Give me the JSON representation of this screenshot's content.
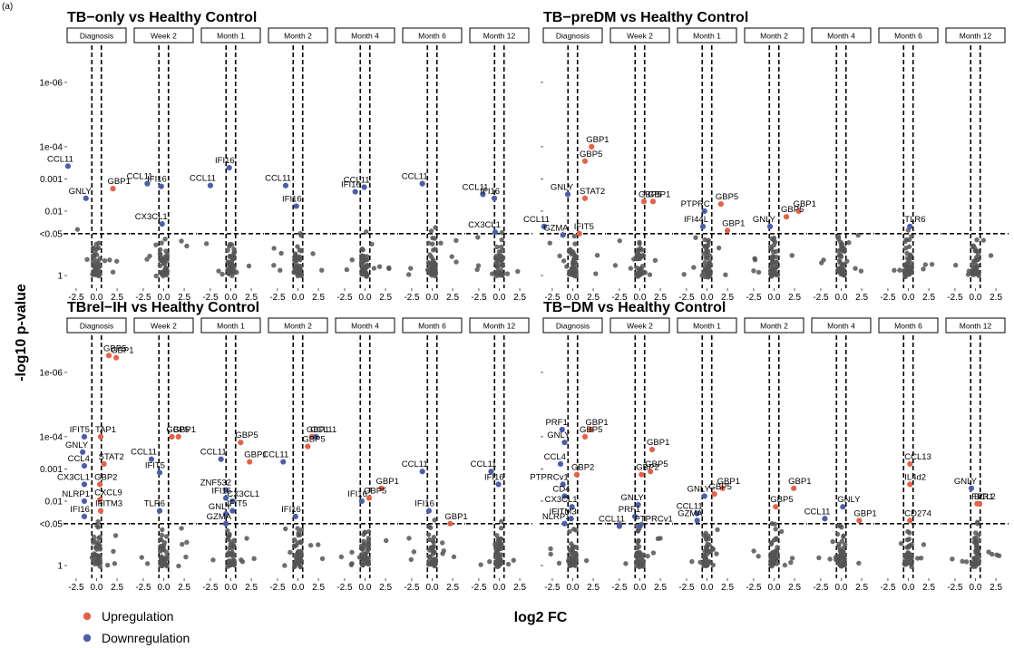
{
  "corner_label": "(a)",
  "chart_data": {
    "type": "scatter",
    "subtype": "faceted volcano plot",
    "xlabel": "log2 FC",
    "ylabel": "-log10 p-value",
    "x_ticks": [
      -2.5,
      0.0,
      2.5
    ],
    "x_tick_labels": [
      "-2.5",
      "0.0",
      "2.5"
    ],
    "xlim": [
      -3.6,
      3.6
    ],
    "y_scale": "log p-value (reversed)",
    "y_ticks": [
      1e-06,
      0.0001,
      0.001,
      0.01,
      0.05,
      1
    ],
    "y_tick_labels": [
      "1e-06",
      "1e-04",
      "0.001",
      "0.01",
      "<0.05",
      "1"
    ],
    "reference_lines": {
      "x": [
        -0.58,
        0.58
      ],
      "y": 0.05,
      "style": "dashed"
    },
    "colors": {
      "Upregulation": "#e0634a",
      "Downregulation": "#4b5ea6",
      "background": "#555555"
    },
    "legend": {
      "placement": "bottom-left",
      "entries": [
        "Upregulation",
        "Downregulation"
      ]
    },
    "timepoints": [
      "Diagnosis",
      "Week 2",
      "Month 1",
      "Month 2",
      "Month 4",
      "Month 6",
      "Month 12"
    ],
    "panels": [
      {
        "title": "TB−only vs Healthy Control",
        "points": [
          {
            "facet": 0,
            "gene": "CCL11",
            "x": -3.5,
            "p": 0.0004,
            "dir": "down"
          },
          {
            "facet": 0,
            "gene": "GNLY",
            "x": -1.3,
            "p": 0.004,
            "dir": "down"
          },
          {
            "facet": 0,
            "gene": "GBP1",
            "x": 2.0,
            "p": 0.002,
            "dir": "up"
          },
          {
            "facet": 1,
            "gene": "CCL11",
            "x": -2.0,
            "p": 0.0014,
            "dir": "down"
          },
          {
            "facet": 1,
            "gene": "IFI16",
            "x": -0.3,
            "p": 0.0017,
            "dir": "down"
          },
          {
            "facet": 1,
            "gene": "CX3CL1",
            "x": -0.2,
            "p": 0.025,
            "dir": "down"
          },
          {
            "facet": 2,
            "gene": "CCL11",
            "x": -2.5,
            "p": 0.0016,
            "dir": "down"
          },
          {
            "facet": 2,
            "gene": "IFI16",
            "x": -0.2,
            "p": 0.00045,
            "dir": "down"
          },
          {
            "facet": 3,
            "gene": "CCL11",
            "x": -1.5,
            "p": 0.0016,
            "dir": "down"
          },
          {
            "facet": 3,
            "gene": "IFI16",
            "x": -0.2,
            "p": 0.007,
            "dir": "down"
          },
          {
            "facet": 4,
            "gene": "IFI16",
            "x": -1.2,
            "p": 0.0025,
            "dir": "down"
          },
          {
            "facet": 4,
            "gene": "CCL11",
            "x": -0.1,
            "p": 0.0018,
            "dir": "down"
          },
          {
            "facet": 5,
            "gene": "CCL11",
            "x": -1.2,
            "p": 0.0014,
            "dir": "down"
          },
          {
            "facet": 6,
            "gene": "CCL11",
            "x": -2.0,
            "p": 0.003,
            "dir": "down"
          },
          {
            "facet": 6,
            "gene": "IFI16",
            "x": -0.6,
            "p": 0.004,
            "dir": "down"
          },
          {
            "facet": 6,
            "gene": "CX3CL1",
            "x": -0.5,
            "p": 0.045,
            "dir": "down"
          }
        ]
      },
      {
        "title": "TB−preDM vs Healthy Control",
        "points": [
          {
            "facet": 0,
            "gene": "GBP1",
            "x": 2.3,
            "p": 0.0001,
            "dir": "up"
          },
          {
            "facet": 0,
            "gene": "GBP5",
            "x": 1.5,
            "p": 0.00028,
            "dir": "up"
          },
          {
            "facet": 0,
            "gene": "STAT2",
            "x": 1.5,
            "p": 0.004,
            "dir": "up"
          },
          {
            "facet": 0,
            "gene": "GNLY",
            "x": -0.6,
            "p": 0.003,
            "dir": "down"
          },
          {
            "facet": 0,
            "gene": "CCL11",
            "x": -3.5,
            "p": 0.03,
            "dir": "down"
          },
          {
            "facet": 0,
            "gene": "GZMA",
            "x": -1.2,
            "p": 0.055,
            "dir": "down"
          },
          {
            "facet": 0,
            "gene": "IFIT5",
            "x": 0.8,
            "p": 0.05,
            "dir": "up"
          },
          {
            "facet": 1,
            "gene": "GBP1",
            "x": 1.6,
            "p": 0.005,
            "dir": "up"
          },
          {
            "facet": 1,
            "gene": "GBP5",
            "x": 0.5,
            "p": 0.005,
            "dir": "up"
          },
          {
            "facet": 2,
            "gene": "PTPRC",
            "x": -0.3,
            "p": 0.01,
            "dir": "down"
          },
          {
            "facet": 2,
            "gene": "IFI44L",
            "x": -0.5,
            "p": 0.03,
            "dir": "down"
          },
          {
            "facet": 2,
            "gene": "GBP5",
            "x": 1.7,
            "p": 0.006,
            "dir": "up"
          },
          {
            "facet": 2,
            "gene": "GBP1",
            "x": 2.5,
            "p": 0.04,
            "dir": "up"
          },
          {
            "facet": 3,
            "gene": "GBP1",
            "x": 3.0,
            "p": 0.01,
            "dir": "up"
          },
          {
            "facet": 3,
            "gene": "GBP5",
            "x": 1.5,
            "p": 0.015,
            "dir": "up"
          },
          {
            "facet": 3,
            "gene": "GNLY",
            "x": -0.5,
            "p": 0.03,
            "dir": "down"
          },
          {
            "facet": 5,
            "gene": "TLR6",
            "x": 0.2,
            "p": 0.03,
            "dir": "down"
          }
        ]
      },
      {
        "title": "TBrel−IH vs Healthy Control",
        "points": [
          {
            "facet": 0,
            "gene": "GBP5",
            "x": 1.5,
            "p": 3e-07,
            "dir": "up"
          },
          {
            "facet": 0,
            "gene": "GBP1",
            "x": 2.4,
            "p": 3.5e-07,
            "dir": "up"
          },
          {
            "facet": 0,
            "gene": "IFIT5",
            "x": -1.5,
            "p": 0.0001,
            "dir": "down"
          },
          {
            "facet": 0,
            "gene": "TAP1",
            "x": 0.5,
            "p": 0.0001,
            "dir": "up"
          },
          {
            "facet": 0,
            "gene": "STAT2",
            "x": 0.9,
            "p": 0.0007,
            "dir": "up"
          },
          {
            "facet": 0,
            "gene": "GNLY",
            "x": -1.7,
            "p": 0.0003,
            "dir": "down"
          },
          {
            "facet": 0,
            "gene": "CCL4",
            "x": -1.5,
            "p": 0.0008,
            "dir": "down"
          },
          {
            "facet": 0,
            "gene": "GBP2",
            "x": 0.4,
            "p": 0.003,
            "dir": "up"
          },
          {
            "facet": 0,
            "gene": "CX3CL1",
            "x": -1.5,
            "p": 0.003,
            "dir": "down"
          },
          {
            "facet": 0,
            "gene": "NLRP1",
            "x": -1.5,
            "p": 0.01,
            "dir": "down"
          },
          {
            "facet": 0,
            "gene": "CXCL9",
            "x": 0.4,
            "p": 0.009,
            "dir": "up"
          },
          {
            "facet": 0,
            "gene": "IFITM3",
            "x": 0.5,
            "p": 0.02,
            "dir": "up"
          },
          {
            "facet": 0,
            "gene": "IFI16",
            "x": -1.5,
            "p": 0.03,
            "dir": "down"
          },
          {
            "facet": 1,
            "gene": "GBP1",
            "x": 1.8,
            "p": 0.0001,
            "dir": "up"
          },
          {
            "facet": 1,
            "gene": "GBP5",
            "x": 1.0,
            "p": 0.0001,
            "dir": "up"
          },
          {
            "facet": 1,
            "gene": "CCL11",
            "x": -1.5,
            "p": 0.0005,
            "dir": "down"
          },
          {
            "facet": 1,
            "gene": "IFIT5",
            "x": -0.5,
            "p": 0.0013,
            "dir": "down"
          },
          {
            "facet": 1,
            "gene": "TLR6",
            "x": -0.5,
            "p": 0.02,
            "dir": "down"
          },
          {
            "facet": 2,
            "gene": "GBP5",
            "x": 1.2,
            "p": 0.00015,
            "dir": "up"
          },
          {
            "facet": 2,
            "gene": "GBP1",
            "x": 2.3,
            "p": 0.0006,
            "dir": "up"
          },
          {
            "facet": 2,
            "gene": "CCL11",
            "x": -1.2,
            "p": 0.0005,
            "dir": "down"
          },
          {
            "facet": 2,
            "gene": "ZNF532",
            "x": -0.6,
            "p": 0.0045,
            "dir": "down"
          },
          {
            "facet": 2,
            "gene": "IFI16",
            "x": -0.6,
            "p": 0.008,
            "dir": "down"
          },
          {
            "facet": 2,
            "gene": "CX3CL1",
            "x": 0.2,
            "p": 0.01,
            "dir": "down"
          },
          {
            "facet": 2,
            "gene": "IFIT5",
            "x": 0.2,
            "p": 0.02,
            "dir": "down"
          },
          {
            "facet": 2,
            "gene": "GNLY",
            "x": -0.6,
            "p": 0.025,
            "dir": "down"
          },
          {
            "facet": 2,
            "gene": "GZMA",
            "x": -0.6,
            "p": 0.05,
            "dir": "down"
          },
          {
            "facet": 3,
            "gene": "GBP1",
            "x": 1.7,
            "p": 0.0001,
            "dir": "up"
          },
          {
            "facet": 3,
            "gene": "CCL11",
            "x": 2.2,
            "p": 0.0001,
            "dir": "down"
          },
          {
            "facet": 3,
            "gene": "GBP5",
            "x": 1.2,
            "p": 0.0002,
            "dir": "up"
          },
          {
            "facet": 3,
            "gene": "CCL11",
            "x": -1.8,
            "p": 0.0006,
            "dir": "down"
          },
          {
            "facet": 3,
            "gene": "IFI16",
            "x": -0.3,
            "p": 0.03,
            "dir": "down"
          },
          {
            "facet": 4,
            "gene": "GBP1",
            "x": 2.0,
            "p": 0.004,
            "dir": "up"
          },
          {
            "facet": 4,
            "gene": "GBP5",
            "x": 0.5,
            "p": 0.008,
            "dir": "up"
          },
          {
            "facet": 4,
            "gene": "IFI16",
            "x": -0.4,
            "p": 0.01,
            "dir": "down"
          },
          {
            "facet": 5,
            "gene": "CCL11",
            "x": -1.2,
            "p": 0.0012,
            "dir": "down"
          },
          {
            "facet": 5,
            "gene": "IFI16",
            "x": -0.4,
            "p": 0.02,
            "dir": "down"
          },
          {
            "facet": 5,
            "gene": "GBP1",
            "x": 2.2,
            "p": 0.05,
            "dir": "up"
          },
          {
            "facet": 6,
            "gene": "CCL11",
            "x": -1.0,
            "p": 0.0012,
            "dir": "down"
          },
          {
            "facet": 6,
            "gene": "IFI16",
            "x": -0.1,
            "p": 0.003,
            "dir": "down"
          }
        ]
      },
      {
        "title": "TB−DM vs Healthy Control",
        "points": [
          {
            "facet": 0,
            "gene": "PRF1",
            "x": -1.3,
            "p": 6e-05,
            "dir": "down"
          },
          {
            "facet": 0,
            "gene": "GBP1",
            "x": 2.2,
            "p": 6e-05,
            "dir": "up"
          },
          {
            "facet": 0,
            "gene": "GNLY",
            "x": -1.0,
            "p": 0.00015,
            "dir": "down"
          },
          {
            "facet": 0,
            "gene": "GBP5",
            "x": 1.5,
            "p": 0.0001,
            "dir": "up"
          },
          {
            "facet": 0,
            "gene": "CCL4",
            "x": -1.5,
            "p": 0.0007,
            "dir": "down"
          },
          {
            "facet": 0,
            "gene": "GBP2",
            "x": 0.5,
            "p": 0.0015,
            "dir": "up"
          },
          {
            "facet": 0,
            "gene": "PTPRCv1",
            "x": -1.2,
            "p": 0.003,
            "dir": "down"
          },
          {
            "facet": 0,
            "gene": "CD4",
            "x": -1.0,
            "p": 0.007,
            "dir": "down"
          },
          {
            "facet": 0,
            "gene": "CX3CL1",
            "x": -0.1,
            "p": 0.015,
            "dir": "down"
          },
          {
            "facet": 0,
            "gene": "NLRP1",
            "x": -1.0,
            "p": 0.05,
            "dir": "down"
          },
          {
            "facet": 0,
            "gene": "IFITM3",
            "x": -0.2,
            "p": 0.035,
            "dir": "down"
          },
          {
            "facet": 1,
            "gene": "GBP1",
            "x": 1.5,
            "p": 0.00025,
            "dir": "up"
          },
          {
            "facet": 1,
            "gene": "GBP5",
            "x": 1.3,
            "p": 0.0012,
            "dir": "up"
          },
          {
            "facet": 1,
            "gene": "GBP2",
            "x": 0.2,
            "p": 0.0015,
            "dir": "up"
          },
          {
            "facet": 1,
            "gene": "GNLY",
            "x": -0.2,
            "p": 0.013,
            "dir": "down"
          },
          {
            "facet": 1,
            "gene": "PRF1",
            "x": -0.6,
            "p": 0.03,
            "dir": "down"
          },
          {
            "facet": 1,
            "gene": "CCL11",
            "x": -2.5,
            "p": 0.06,
            "dir": "down"
          },
          {
            "facet": 1,
            "gene": "PTPRCv1",
            "x": 0.0,
            "p": 0.06,
            "dir": "down"
          },
          {
            "facet": 2,
            "gene": "GBP1",
            "x": 1.9,
            "p": 0.004,
            "dir": "up"
          },
          {
            "facet": 2,
            "gene": "GBP5",
            "x": 0.9,
            "p": 0.006,
            "dir": "up"
          },
          {
            "facet": 2,
            "gene": "GNLY",
            "x": -0.3,
            "p": 0.007,
            "dir": "down"
          },
          {
            "facet": 2,
            "gene": "CCL11",
            "x": -1.2,
            "p": 0.024,
            "dir": "down"
          },
          {
            "facet": 2,
            "gene": "GZMA",
            "x": -1.2,
            "p": 0.04,
            "dir": "down"
          },
          {
            "facet": 3,
            "gene": "GBP1",
            "x": 2.4,
            "p": 0.004,
            "dir": "up"
          },
          {
            "facet": 3,
            "gene": "GBP5",
            "x": 0.2,
            "p": 0.015,
            "dir": "up"
          },
          {
            "facet": 4,
            "gene": "GNLY",
            "x": 0.2,
            "p": 0.015,
            "dir": "down"
          },
          {
            "facet": 4,
            "gene": "CCL11",
            "x": -2.0,
            "p": 0.035,
            "dir": "down"
          },
          {
            "facet": 4,
            "gene": "GBP1",
            "x": 2.2,
            "p": 0.04,
            "dir": "up"
          },
          {
            "facet": 5,
            "gene": "CCL13",
            "x": 0.2,
            "p": 0.0007,
            "dir": "up"
          },
          {
            "facet": 5,
            "gene": "IL4d2",
            "x": 0.2,
            "p": 0.003,
            "dir": "up"
          },
          {
            "facet": 5,
            "gene": "CD274",
            "x": 0.2,
            "p": 0.04,
            "dir": "up"
          },
          {
            "facet": 6,
            "gene": "GNLY",
            "x": -0.5,
            "p": 0.004,
            "dir": "down"
          },
          {
            "facet": 6,
            "gene": "FPR1",
            "x": 0.2,
            "p": 0.012,
            "dir": "up"
          },
          {
            "facet": 6,
            "gene": "BCL2",
            "x": 0.5,
            "p": 0.012,
            "dir": "up"
          }
        ]
      }
    ]
  }
}
